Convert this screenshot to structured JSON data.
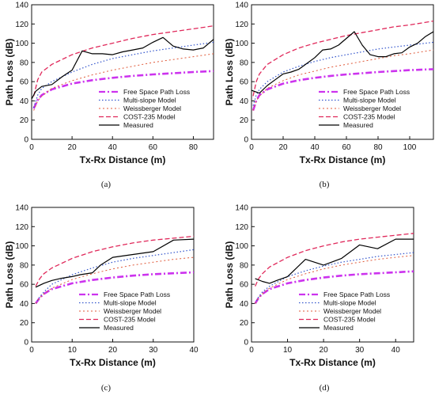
{
  "legend_labels": [
    "Free Space Path Loss",
    "Multi-slope Model",
    "Weissberger Model",
    "COST-235 Model",
    "Measured"
  ],
  "series_styles": [
    {
      "color": "#cc33ee",
      "dash": "8 3 2 3",
      "width": 2.6
    },
    {
      "color": "#3355cc",
      "dash": "1.5 2.5",
      "width": 1.2
    },
    {
      "color": "#e05a3a",
      "dash": "2 3",
      "width": 1.0
    },
    {
      "color": "#e0285a",
      "dash": "6 3",
      "width": 1.3
    },
    {
      "color": "#000000",
      "dash": "",
      "width": 1.2
    }
  ],
  "chart_data": [
    {
      "type": "line",
      "caption": "(a)",
      "xlabel": "Tx-Rx Distance (m)",
      "ylabel": "Path Loss (dB)",
      "xlim": [
        0,
        90
      ],
      "ylim": [
        0,
        140
      ],
      "xticks": [
        0,
        20,
        40,
        60,
        80
      ],
      "yticks": [
        0,
        20,
        40,
        60,
        80,
        100,
        120,
        140
      ],
      "legend_position": "bottom-right",
      "series": [
        {
          "name": "Free Space Path Loss",
          "x": [
            1,
            3,
            5,
            10,
            20,
            30,
            40,
            50,
            60,
            70,
            80,
            90
          ],
          "y": [
            32,
            41,
            46,
            52,
            58,
            61.5,
            64,
            66,
            67.5,
            68.8,
            70,
            71
          ]
        },
        {
          "name": "Multi-slope Model",
          "x": [
            1,
            3,
            5,
            10,
            20,
            30,
            40,
            50,
            60,
            70,
            80,
            90
          ],
          "y": [
            33,
            46,
            53,
            60,
            70,
            78,
            84,
            88,
            92,
            95,
            98,
            101
          ]
        },
        {
          "name": "Weissberger Model",
          "x": [
            1,
            3,
            5,
            10,
            20,
            30,
            40,
            50,
            60,
            70,
            80,
            90
          ],
          "y": [
            30,
            40,
            45,
            53,
            61,
            67,
            72,
            76,
            80,
            83,
            86,
            89
          ]
        },
        {
          "name": "COST-235 Model",
          "x": [
            1,
            3,
            5,
            10,
            20,
            30,
            40,
            50,
            60,
            70,
            80,
            90
          ],
          "y": [
            45,
            62,
            70,
            78,
            88,
            95,
            100,
            105,
            109,
            112,
            115,
            118
          ]
        },
        {
          "name": "Measured",
          "x": [
            0,
            2,
            5,
            10,
            15,
            20,
            25,
            30,
            35,
            40,
            45,
            50,
            55,
            60,
            65,
            70,
            75,
            80,
            85,
            90
          ],
          "y": [
            42,
            50,
            55,
            57,
            65,
            72,
            92,
            89,
            89,
            88,
            91,
            93,
            95,
            101,
            106,
            97,
            94,
            93,
            95,
            104
          ]
        }
      ]
    },
    {
      "type": "line",
      "caption": "(b)",
      "xlabel": "Tx-Rx Distance (m)",
      "ylabel": "Path Loss (dB)",
      "xlim": [
        0,
        115
      ],
      "ylim": [
        0,
        140
      ],
      "xticks": [
        0,
        20,
        40,
        60,
        80,
        100
      ],
      "yticks": [
        0,
        20,
        40,
        60,
        80,
        100,
        120,
        140
      ],
      "legend_position": "bottom-right",
      "series": [
        {
          "name": "Free Space Path Loss",
          "x": [
            1,
            3,
            5,
            10,
            20,
            30,
            40,
            50,
            60,
            70,
            80,
            90,
            100,
            115
          ],
          "y": [
            30,
            40,
            46,
            52,
            58,
            61.5,
            64,
            66,
            67.5,
            68.8,
            70,
            71,
            72,
            73
          ]
        },
        {
          "name": "Multi-slope Model",
          "x": [
            1,
            3,
            5,
            10,
            20,
            30,
            40,
            50,
            60,
            70,
            80,
            90,
            100,
            115
          ],
          "y": [
            35,
            46,
            52,
            60,
            70,
            76,
            81,
            85,
            88,
            91,
            94,
            96,
            98,
            101
          ]
        },
        {
          "name": "Weissberger Model",
          "x": [
            1,
            3,
            5,
            10,
            20,
            30,
            40,
            50,
            60,
            70,
            80,
            90,
            100,
            115
          ],
          "y": [
            30,
            40,
            45,
            53,
            61,
            67,
            71,
            75,
            78,
            81,
            84,
            87,
            89,
            93
          ]
        },
        {
          "name": "COST-235 Model",
          "x": [
            1,
            3,
            5,
            10,
            20,
            30,
            40,
            50,
            60,
            70,
            80,
            90,
            100,
            115
          ],
          "y": [
            45,
            60,
            68,
            78,
            88,
            95,
            100,
            104,
            108,
            111,
            114,
            117,
            119,
            123
          ]
        },
        {
          "name": "Measured",
          "x": [
            0,
            5,
            10,
            15,
            20,
            25,
            30,
            35,
            40,
            45,
            50,
            55,
            60,
            65,
            70,
            75,
            80,
            85,
            90,
            95,
            100,
            105,
            110,
            115
          ],
          "y": [
            51,
            48,
            56,
            62,
            68,
            70,
            73,
            79,
            85,
            93,
            94,
            98,
            105,
            112,
            98,
            88,
            86,
            86,
            89,
            90,
            96,
            100,
            107,
            112
          ]
        }
      ]
    },
    {
      "type": "line",
      "caption": "(c)",
      "xlabel": "Tx-Rx Distance (m)",
      "ylabel": "Path Loss (dB)",
      "xlim": [
        0,
        40
      ],
      "ylim": [
        0,
        140
      ],
      "xticks": [
        0,
        10,
        20,
        30,
        40
      ],
      "yticks": [
        0,
        20,
        40,
        60,
        80,
        100,
        120,
        140
      ],
      "legend_position": "bottom-right",
      "series": [
        {
          "name": "Free Space Path Loss",
          "x": [
            1,
            2,
            3,
            5,
            10,
            15,
            20,
            25,
            30,
            35,
            40
          ],
          "y": [
            40,
            46,
            50,
            55,
            61,
            64.5,
            67,
            69,
            70.5,
            71.5,
            72.5
          ]
        },
        {
          "name": "Multi-slope Model",
          "x": [
            1,
            2,
            3,
            5,
            10,
            15,
            20,
            25,
            30,
            35,
            40
          ],
          "y": [
            40,
            47,
            52,
            60,
            70,
            77,
            83,
            87,
            90,
            93,
            96
          ]
        },
        {
          "name": "Weissberger Model",
          "x": [
            1,
            2,
            3,
            5,
            10,
            15,
            20,
            25,
            30,
            35,
            40
          ],
          "y": [
            40,
            46,
            50,
            56,
            65,
            71,
            76,
            80,
            83,
            86,
            88
          ]
        },
        {
          "name": "COST-235 Model",
          "x": [
            1,
            2,
            3,
            5,
            10,
            15,
            20,
            25,
            30,
            35,
            40
          ],
          "y": [
            58,
            66,
            71,
            77,
            87,
            94,
            99,
            103,
            106,
            108,
            110
          ]
        },
        {
          "name": "Measured",
          "x": [
            1,
            3,
            5,
            7,
            10,
            12,
            15,
            17,
            20,
            25,
            30,
            35,
            40
          ],
          "y": [
            57,
            61,
            64,
            66,
            68,
            70,
            72,
            80,
            88,
            91,
            94,
            106,
            107
          ]
        }
      ]
    },
    {
      "type": "line",
      "caption": "(d)",
      "xlabel": "Tx-Rx Distance (m)",
      "ylabel": "Path Loss (dB)",
      "xlim": [
        0,
        45
      ],
      "ylim": [
        0,
        140
      ],
      "xticks": [
        0,
        10,
        20,
        30,
        40
      ],
      "yticks": [
        0,
        20,
        40,
        60,
        80,
        100,
        120,
        140
      ],
      "legend_position": "bottom-right",
      "series": [
        {
          "name": "Free Space Path Loss",
          "x": [
            1,
            2,
            3,
            5,
            10,
            15,
            20,
            25,
            30,
            35,
            40,
            45
          ],
          "y": [
            40,
            46,
            50,
            55,
            61,
            64.5,
            67,
            69,
            70.5,
            71.5,
            72.5,
            73.5
          ]
        },
        {
          "name": "Multi-slope Model",
          "x": [
            1,
            2,
            3,
            5,
            10,
            15,
            20,
            25,
            30,
            35,
            40,
            45
          ],
          "y": [
            40,
            47,
            52,
            58,
            68,
            74,
            79,
            83,
            86,
            89,
            91,
            93
          ]
        },
        {
          "name": "Weissberger Model",
          "x": [
            1,
            2,
            3,
            5,
            10,
            15,
            20,
            25,
            30,
            35,
            40,
            45
          ],
          "y": [
            40,
            46,
            50,
            56,
            65,
            71,
            76,
            80,
            83,
            86,
            88,
            90
          ]
        },
        {
          "name": "COST-235 Model",
          "x": [
            1,
            2,
            3,
            5,
            10,
            15,
            20,
            25,
            30,
            35,
            40,
            45
          ],
          "y": [
            58,
            66,
            71,
            78,
            88,
            95,
            100,
            104,
            107,
            109,
            111,
            113
          ]
        },
        {
          "name": "Measured",
          "x": [
            1,
            3,
            5,
            7,
            10,
            15,
            20,
            25,
            30,
            35,
            40,
            45
          ],
          "y": [
            66,
            63,
            61,
            64,
            68,
            86,
            80,
            87,
            101,
            97,
            107,
            107
          ]
        }
      ]
    }
  ]
}
